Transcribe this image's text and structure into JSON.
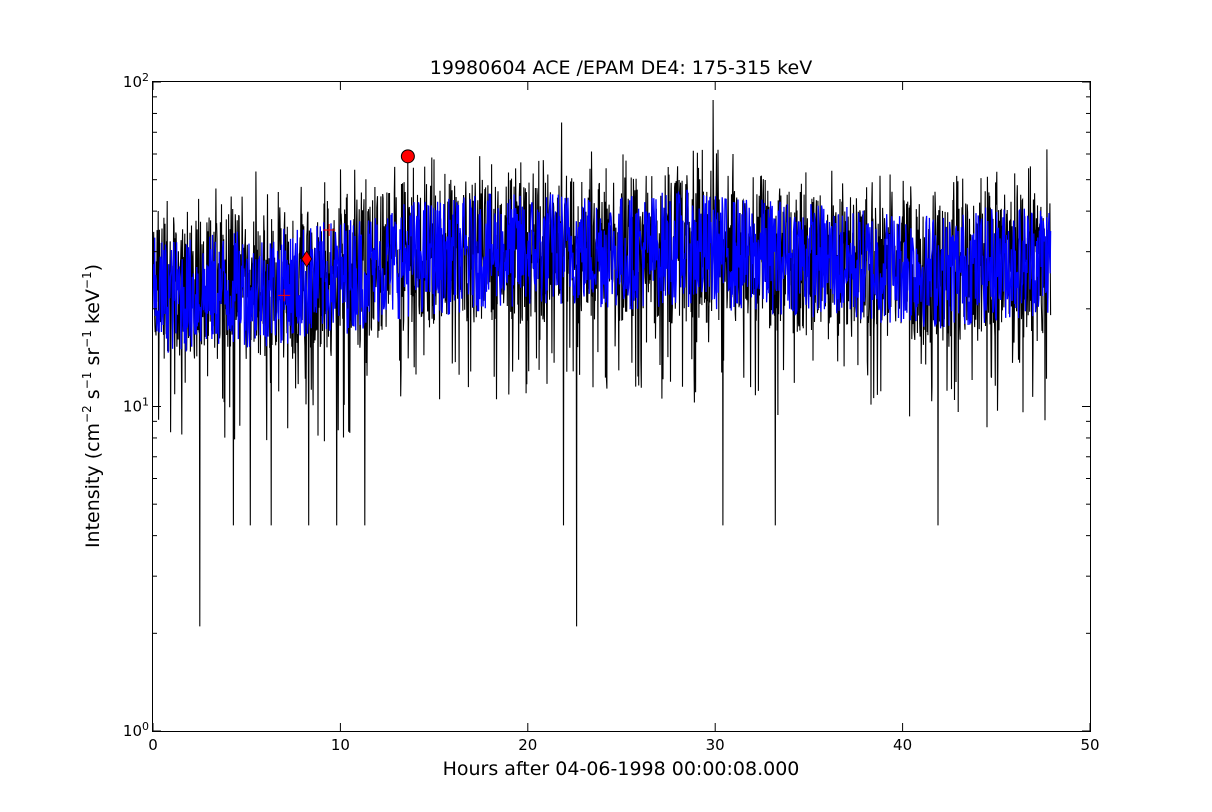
{
  "chart_data": {
    "type": "line",
    "title": "19980604 ACE /EPAM DE4: 175-315 keV",
    "xlabel": "Hours after 04-06-1998 00:00:08.000",
    "ylabel": {
      "base": "Intensity (cm",
      "exp1": "−2",
      "mid1": " s",
      "exp2": "−1",
      "mid2": " sr",
      "exp3": "−1",
      "mid3": " keV",
      "exp4": "−1",
      "end": ")"
    },
    "xlim": [
      0,
      50
    ],
    "ylim": [
      1,
      100
    ],
    "yscale": "log",
    "grid": false,
    "x_ticks": [
      0,
      10,
      20,
      30,
      40,
      50
    ],
    "x_tick_labels": [
      "0",
      "10",
      "20",
      "30",
      "40",
      "50"
    ],
    "y_tick_labels": [
      {
        "value": 1,
        "base": "10",
        "exp": "0"
      },
      {
        "value": 10,
        "base": "10",
        "exp": "1"
      },
      {
        "value": 100,
        "base": "10",
        "exp": "2"
      }
    ],
    "raw_series": {
      "color": "#000000",
      "x_range": [
        0,
        47.9
      ],
      "noise_floor_hours_values": [
        [
          2.5,
          2.1
        ],
        [
          4.3,
          4.3
        ],
        [
          5.2,
          4.3
        ],
        [
          6.3,
          4.3
        ],
        [
          8.3,
          4.3
        ],
        [
          9.8,
          4.3
        ],
        [
          11.3,
          4.3
        ],
        [
          21.9,
          4.3
        ],
        [
          22.6,
          2.1
        ],
        [
          30.4,
          4.3
        ],
        [
          33.2,
          4.3
        ],
        [
          41.9,
          4.3
        ]
      ],
      "peaks": [
        [
          5.5,
          53
        ],
        [
          13.6,
          60
        ],
        [
          21.8,
          75
        ],
        [
          28.0,
          55
        ],
        [
          29.9,
          88
        ],
        [
          47.7,
          62
        ]
      ],
      "envelope": [
        [
          0,
          22,
          14,
          38
        ],
        [
          5,
          23,
          14,
          40
        ],
        [
          8,
          24,
          14,
          40
        ],
        [
          10,
          26,
          14,
          45
        ],
        [
          13,
          28,
          17,
          50
        ],
        [
          20,
          30,
          18,
          50
        ],
        [
          26,
          31,
          18,
          52
        ],
        [
          30,
          30,
          18,
          52
        ],
        [
          36,
          28,
          16,
          45
        ],
        [
          42,
          27,
          15,
          42
        ],
        [
          47.9,
          28,
          16,
          48
        ]
      ]
    },
    "smoothed_series": {
      "color": "#0000ff",
      "x": [
        0,
        2,
        4,
        6,
        8,
        10,
        12,
        14,
        16,
        18,
        20,
        22,
        24,
        26,
        28,
        30,
        32,
        34,
        36,
        38,
        40,
        42,
        44,
        46,
        47.9
      ],
      "y": [
        22,
        22,
        23,
        23,
        24,
        25,
        27,
        29,
        29,
        30,
        30,
        31,
        30,
        30,
        31,
        30,
        29,
        29,
        28,
        27,
        27,
        26,
        27,
        28,
        29
      ],
      "spread": 0.18
    },
    "markers": [
      {
        "shape": "plus",
        "x": 7.0,
        "y": 22,
        "color": "#ff0000"
      },
      {
        "shape": "diamond",
        "x": 8.2,
        "y": 28.5,
        "color": "#ff0000"
      },
      {
        "shape": "plus",
        "x": 9.4,
        "y": 35,
        "color": "#ff0000"
      },
      {
        "shape": "circle",
        "x": 13.6,
        "y": 59,
        "color": "#ff0000"
      }
    ]
  }
}
